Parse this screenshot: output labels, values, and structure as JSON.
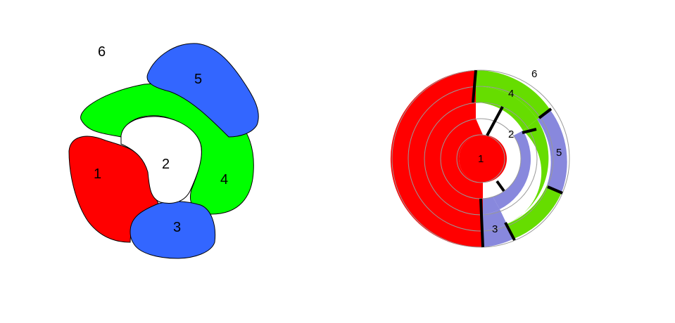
{
  "left_diagram": {
    "regions": [
      {
        "label": "1",
        "color": "#ff0000"
      },
      {
        "label": "2",
        "color": "#ffffff"
      },
      {
        "label": "3",
        "color": "#3366ff"
      },
      {
        "label": "4",
        "color": "#00ff00"
      },
      {
        "label": "5",
        "color": "#3366ff"
      },
      {
        "label": "6",
        "color": "#ffffff"
      }
    ]
  },
  "right_diagram": {
    "regions": [
      {
        "label": "1",
        "color": "#ff0000"
      },
      {
        "label": "2",
        "color": "#ffffff"
      },
      {
        "label": "3",
        "color": "#8888dd"
      },
      {
        "label": "4",
        "color": "#66dd00"
      },
      {
        "label": "5",
        "color": "#8888dd"
      },
      {
        "label": "6",
        "color": "#ffffff"
      }
    ]
  }
}
